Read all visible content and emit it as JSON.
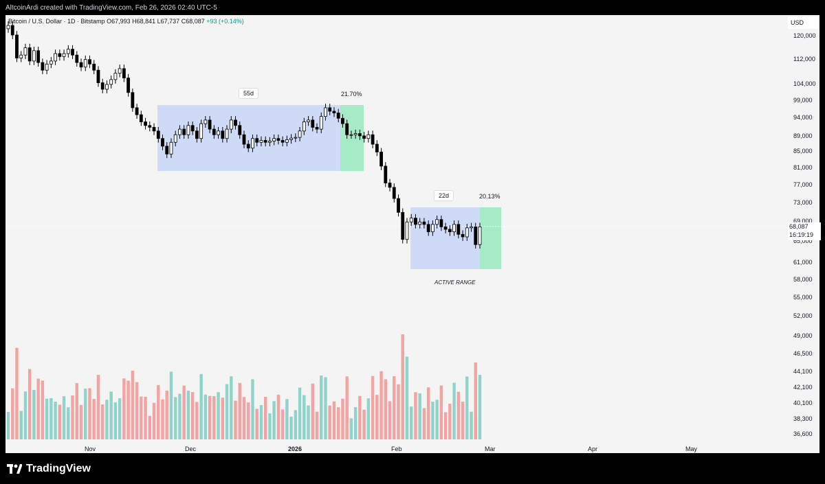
{
  "header": {
    "text": "AltcoinArdi created with TradingView.com, Feb 26, 2026 02:40 UTC-5"
  },
  "legend": {
    "symbol": "Bitcoin / U.S. Dollar · 1D · Bitstamp",
    "open": "O67,993",
    "high": "H68,841",
    "low": "L67,737",
    "close": "C68,087",
    "change": "+93 (+0.14%)"
  },
  "axis": {
    "currency": "USD",
    "price_ticks": [
      "120,000",
      "112,000",
      "104,000",
      "99,000",
      "94,000",
      "89,000",
      "85,000",
      "81,000",
      "77,000",
      "73,000",
      "69,000",
      "65,000",
      "61,000",
      "58,000",
      "55,000",
      "52,000",
      "49,000",
      "46,500",
      "44,100",
      "42,100",
      "40,100",
      "38,300",
      "36,600"
    ],
    "last_price": "68,087",
    "countdown": "16:19:19",
    "time_ticks": [
      {
        "label": "Nov",
        "bold": false
      },
      {
        "label": "Dec",
        "bold": false
      },
      {
        "label": "2026",
        "bold": true
      },
      {
        "label": "Feb",
        "bold": false
      },
      {
        "label": "Mar",
        "bold": false
      },
      {
        "label": "Apr",
        "bold": false
      },
      {
        "label": "May",
        "bold": false
      }
    ]
  },
  "annotations": {
    "range1_duration": "55d",
    "range1_pct": "21.70%",
    "range2_duration": "22d",
    "range2_pct": "20.13%",
    "active_range": "ACTIVE RANGE"
  },
  "colors": {
    "up": "#ffffff",
    "down": "#000000",
    "vol_up": "#8fd3ca",
    "vol_down": "#f2a3a3",
    "range_blue": "#cfdaf6",
    "range_green": "#a5ebc8"
  },
  "footer": {
    "brand": "TradingView"
  },
  "chart_data": {
    "type": "candlestick",
    "title": "Bitcoin / U.S. Dollar · 1D · Bitstamp",
    "currency": "USD",
    "scale": "log",
    "ylim": [
      36600,
      120000
    ],
    "close_series": [
      124000,
      120500,
      112500,
      113500,
      116000,
      111500,
      115000,
      111000,
      108500,
      110500,
      111500,
      114000,
      113000,
      114000,
      115500,
      113500,
      111000,
      109500,
      112000,
      110500,
      108500,
      104500,
      102500,
      104000,
      105500,
      107500,
      109000,
      106000,
      101500,
      97000,
      95000,
      93000,
      92000,
      91500,
      90500,
      88500,
      86500,
      84500,
      87500,
      89500,
      91000,
      89500,
      92000,
      90500,
      88500,
      92500,
      93500,
      91000,
      89500,
      90500,
      88500,
      91000,
      93500,
      92000,
      89500,
      87000,
      86000,
      88500,
      87500,
      88000,
      87500,
      87800,
      88500,
      88000,
      87500,
      88200,
      88600,
      88800,
      90500,
      93000,
      93500,
      91500,
      91000,
      94500,
      97000,
      96000,
      95500,
      94000,
      92500,
      89500,
      89500,
      89800,
      89200,
      88500,
      89500,
      87000,
      85000,
      81500,
      77500,
      76500,
      74000,
      71000,
      65500,
      69000,
      69800,
      68500,
      69000,
      68500,
      67000,
      68500,
      69500,
      68000,
      67500,
      67000,
      68500,
      66500,
      66000,
      67800,
      68000,
      64500,
      68000
    ],
    "volume_bars_count": 111,
    "ranges": [
      {
        "duration": "55d",
        "move": "21.70%"
      },
      {
        "duration": "22d",
        "move": "20.13%",
        "label": "ACTIVE RANGE"
      }
    ]
  }
}
